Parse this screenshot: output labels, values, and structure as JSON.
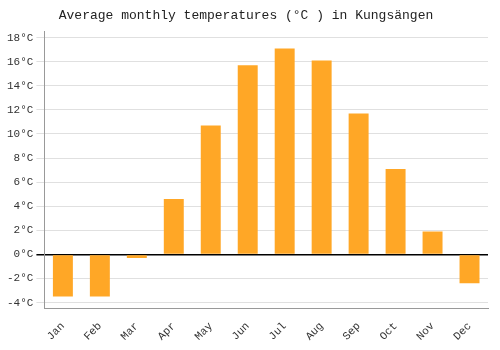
{
  "chart_data": {
    "type": "bar",
    "title": "Average monthly temperatures (°C ) in Kungsängen",
    "categories": [
      "Jan",
      "Feb",
      "Mar",
      "Apr",
      "May",
      "Jun",
      "Jul",
      "Aug",
      "Sep",
      "Oct",
      "Nov",
      "Dec"
    ],
    "values": [
      -3.5,
      -3.5,
      -0.3,
      4.6,
      10.7,
      15.7,
      17.1,
      16.1,
      11.7,
      7.1,
      1.9,
      -2.4
    ],
    "color": "#FFA726",
    "ylim": [
      -4.5,
      18.5
    ],
    "yticks": [
      {
        "value": -4,
        "label": "-4°C"
      },
      {
        "value": -2,
        "label": "-2°C"
      },
      {
        "value": 0,
        "label": "0°C"
      },
      {
        "value": 2,
        "label": "2°C"
      },
      {
        "value": 4,
        "label": "4°C"
      },
      {
        "value": 6,
        "label": "6°C"
      },
      {
        "value": 8,
        "label": "8°C"
      },
      {
        "value": 10,
        "label": "10°C"
      },
      {
        "value": 12,
        "label": "12°C"
      },
      {
        "value": 14,
        "label": "14°C"
      },
      {
        "value": 16,
        "label": "16°C"
      },
      {
        "value": 18,
        "label": "18°C"
      }
    ],
    "grid": true
  }
}
